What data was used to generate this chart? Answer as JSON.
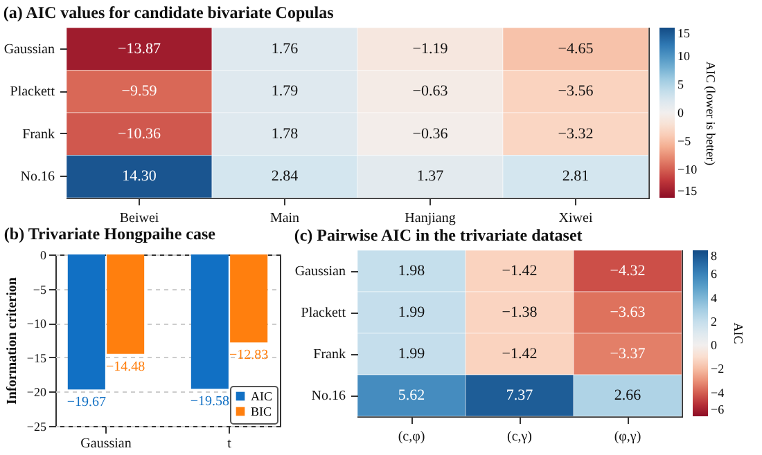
{
  "chart_data": [
    {
      "type": "heatmap",
      "title": "(a) AIC values for candidate bivariate Copulas",
      "categories": [
        "Beiwei",
        "Main",
        "Hanjiang",
        "Xiwei"
      ],
      "y_categories": [
        "Gaussian",
        "Plackett",
        "Frank",
        "No.16"
      ],
      "cells": [
        [
          -13.87,
          1.76,
          -1.19,
          -4.65
        ],
        [
          -9.59,
          1.79,
          -0.63,
          -3.56
        ],
        [
          -10.36,
          1.78,
          -0.36,
          -3.32
        ],
        [
          14.3,
          2.84,
          1.37,
          2.81
        ]
      ],
      "cell_labels": [
        [
          "−13.87",
          "1.76",
          "−1.19",
          "−4.65"
        ],
        [
          "−9.59",
          "1.79",
          "−0.63",
          "−3.56"
        ],
        [
          "−10.36",
          "1.78",
          "−0.36",
          "−3.32"
        ],
        [
          "14.30",
          "2.84",
          "1.37",
          "2.81"
        ]
      ],
      "clabel": "AIC (lower is better)",
      "clim": [
        -15,
        15
      ],
      "cticks": [
        -15,
        -10,
        -5,
        0,
        5,
        10,
        15
      ],
      "data_labels": true
    },
    {
      "type": "bar",
      "title": "(b) Trivariate Hongpaihe case",
      "ylabel": "Information criterion",
      "categories": [
        "Gaussian",
        "t"
      ],
      "series": [
        {
          "name": "AIC",
          "color": "#1170c4",
          "values": [
            -19.67,
            -19.58
          ]
        },
        {
          "name": "BIC",
          "color": "#ff7f0e",
          "values": [
            -14.48,
            -12.83
          ]
        }
      ],
      "ylim": [
        -25,
        0
      ],
      "yticks": [
        -25,
        -20,
        -15,
        -10,
        -5,
        0
      ],
      "grid": "y",
      "legend": "bottom right",
      "data_labels": true
    },
    {
      "type": "heatmap",
      "title": "(c) Pairwise AIC in the trivariate dataset",
      "categories": [
        "(c,φ)",
        "(c,γ)",
        "(φ,γ)"
      ],
      "y_categories": [
        "Gaussian",
        "Plackett",
        "Frank",
        "No.16"
      ],
      "cells": [
        [
          1.98,
          -1.42,
          -4.32
        ],
        [
          1.99,
          -1.38,
          -3.63
        ],
        [
          1.99,
          -1.42,
          -3.37
        ],
        [
          5.62,
          7.37,
          2.66
        ]
      ],
      "cell_labels": [
        [
          "1.98",
          "−1.42",
          "−4.32"
        ],
        [
          "1.99",
          "−1.38",
          "−3.63"
        ],
        [
          "1.99",
          "−1.42",
          "−3.37"
        ],
        [
          "5.62",
          "7.37",
          "2.66"
        ]
      ],
      "clabel": "AIC",
      "clim": [
        -6,
        8
      ],
      "cticks": [
        -6,
        -4,
        -2,
        0,
        2,
        4,
        6,
        8
      ],
      "data_labels": true
    }
  ]
}
